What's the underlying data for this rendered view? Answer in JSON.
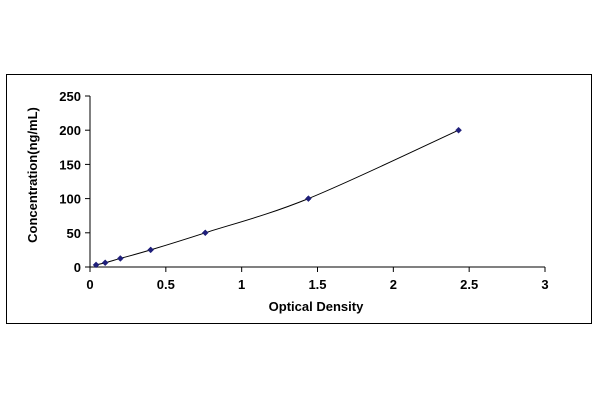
{
  "chart_data": {
    "type": "line",
    "title": "",
    "xlabel": "Optical Density",
    "ylabel": "Concentration(ng/mL)",
    "xlim": [
      0,
      3
    ],
    "ylim": [
      0,
      250
    ],
    "xticks": [
      "0",
      "0.5",
      "1",
      "1.5",
      "2",
      "2.5",
      "3"
    ],
    "yticks": [
      "0",
      "50",
      "100",
      "150",
      "200",
      "250"
    ],
    "grid": false,
    "legend": "none",
    "series": [
      {
        "x": [
          0.04,
          0.1,
          0.2,
          0.4,
          0.76,
          1.44,
          2.43
        ],
        "y": [
          3.1,
          6.25,
          12.5,
          25,
          50,
          100,
          200
        ],
        "color": "#1f1f7a",
        "marker": "diamond",
        "line_color": "#000000"
      }
    ]
  }
}
